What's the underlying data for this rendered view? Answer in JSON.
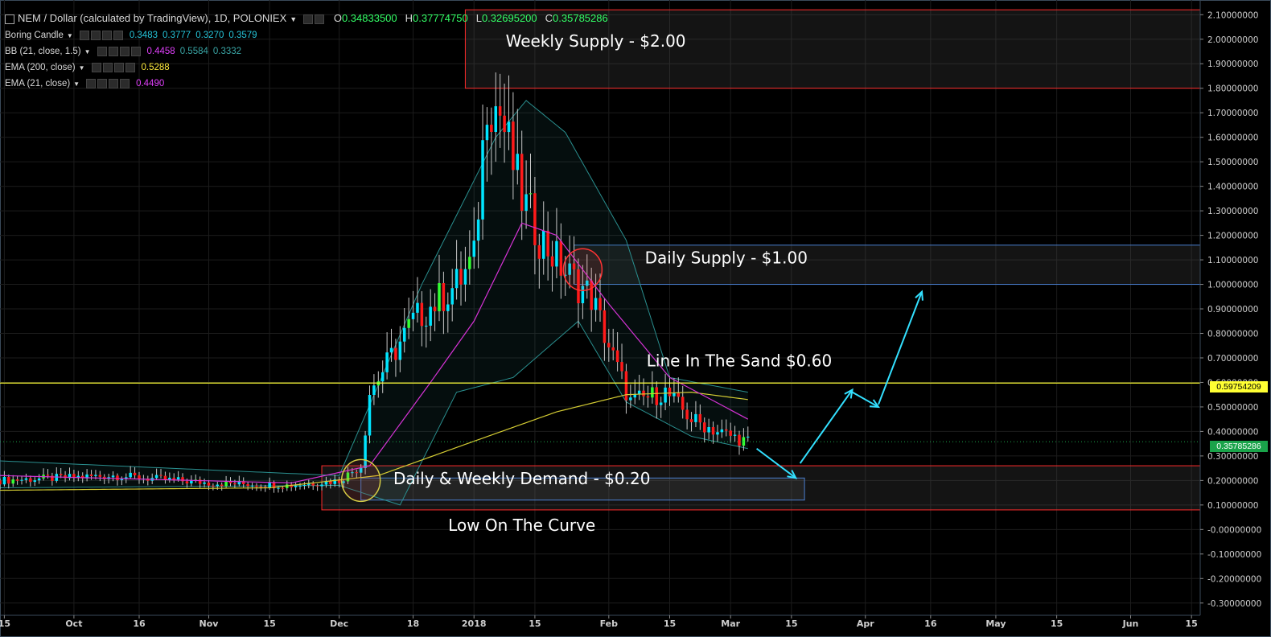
{
  "header": {
    "title": "NEM / Dollar (calculated by TradingView), 1D, POLONIEX",
    "ohlc": [
      {
        "k": "O",
        "v": "0.34833500"
      },
      {
        "k": "H",
        "v": "0.37774750"
      },
      {
        "k": "L",
        "v": "0.32695200"
      },
      {
        "k": "C",
        "v": "0.35785286"
      }
    ]
  },
  "indicators": [
    {
      "name": "Boring Candle",
      "values": [
        "0.3483",
        "0.3777",
        "0.3270",
        "0.3579"
      ],
      "colors": [
        "#26c6da",
        "#26c6da",
        "#26c6da",
        "#26c6da"
      ]
    },
    {
      "name": "BB (21, close, 1.5)",
      "values": [
        "0.4458",
        "0.5584",
        "0.3332"
      ],
      "colors": [
        "#e040fb",
        "#3aa6a6",
        "#3aa6a6"
      ]
    },
    {
      "name": "EMA (200, close)",
      "values": [
        "0.5288"
      ],
      "colors": [
        "#ffeb3b"
      ]
    },
    {
      "name": "EMA (21, close)",
      "values": [
        "0.4490"
      ],
      "colors": [
        "#e040fb"
      ]
    }
  ],
  "colors": {
    "up": "#00e5ff",
    "down": "#ff1a1a",
    "up_alt": "#33ff33",
    "ema200": "#d4cc33",
    "ema21": "#d633d6",
    "bb": "#2a8f8f",
    "sand_line": "#ffff33",
    "supply_border": "#ff2b2b",
    "daily_border": "#4a7fd0",
    "arrow": "#33e0ff",
    "circle_red": "#ff3333",
    "circle_yellow": "#d6cc44"
  },
  "annotations": {
    "weekly_supply": "Weekly Supply - $2.00",
    "daily_supply": "Daily Supply - $1.00",
    "line_in_sand": "Line In The Sand $0.60",
    "demand": "Daily & Weekly Demand - $0.20",
    "low_curve": "Low On The Curve"
  },
  "price_tags": {
    "sand": "0.59754209",
    "last": "0.35785286"
  },
  "chart_data": {
    "type": "candlestick",
    "y_ticks": [
      2.1,
      2.0,
      1.9,
      1.8,
      1.7,
      1.6,
      1.5,
      1.4,
      1.3,
      1.2,
      1.1,
      1.0,
      0.9,
      0.8,
      0.7,
      0.6,
      0.5,
      0.4,
      0.3,
      0.2,
      0.1,
      0.0,
      -0.1,
      -0.2,
      -0.3
    ],
    "y_tick_labels": [
      "2.10000000",
      "2.00000000",
      "1.90000000",
      "1.80000000",
      "1.70000000",
      "1.60000000",
      "1.50000000",
      "1.40000000",
      "1.30000000",
      "1.20000000",
      "1.10000000",
      "1.00000000",
      "0.90000000",
      "0.80000000",
      "0.70000000",
      "0.60000000",
      "0.50000000",
      "0.40000000",
      "0.30000000",
      "0.20000000",
      "0.10000000",
      "-0.00000000",
      "-0.10000000",
      "-0.20000000",
      "-0.30000000"
    ],
    "ylim": [
      -0.35,
      2.16
    ],
    "x_ticks": [
      {
        "label": "15",
        "date": "2017-09-15"
      },
      {
        "label": "Oct",
        "date": "2017-10-01"
      },
      {
        "label": "16",
        "date": "2017-10-16"
      },
      {
        "label": "Nov",
        "date": "2017-11-01"
      },
      {
        "label": "15",
        "date": "2017-11-15"
      },
      {
        "label": "Dec",
        "date": "2017-12-01"
      },
      {
        "label": "18",
        "date": "2017-12-18"
      },
      {
        "label": "2018",
        "date": "2018-01-01"
      },
      {
        "label": "15",
        "date": "2018-01-15"
      },
      {
        "label": "Feb",
        "date": "2018-02-01"
      },
      {
        "label": "15",
        "date": "2018-02-15"
      },
      {
        "label": "Mar",
        "date": "2018-03-01"
      },
      {
        "label": "15",
        "date": "2018-03-15"
      },
      {
        "label": "Apr",
        "date": "2018-04-01"
      },
      {
        "label": "16",
        "date": "2018-04-16"
      },
      {
        "label": "May",
        "date": "2018-05-01"
      },
      {
        "label": "15",
        "date": "2018-05-15"
      },
      {
        "label": "Jun",
        "date": "2018-06-01"
      },
      {
        "label": "15",
        "date": "2018-06-15"
      }
    ],
    "xlim": [
      "2017-09-14",
      "2018-06-17"
    ],
    "zones": [
      {
        "name": "weekly-supply",
        "from_date": "2017-12-30",
        "to_date": "2018-06-17",
        "low": 1.8,
        "high": 2.12,
        "border": "supply_border"
      },
      {
        "name": "daily-supply",
        "from_date": "2018-01-24",
        "to_date": "2018-06-17",
        "low": 1.0,
        "high": 1.16,
        "border": "daily_border"
      },
      {
        "name": "demand-outer",
        "from_date": "2017-11-27",
        "to_date": "2018-06-17",
        "low": 0.08,
        "high": 0.26,
        "border": "supply_border"
      },
      {
        "name": "demand-inner",
        "from_date": "2017-12-06",
        "to_date": "2018-03-18",
        "low": 0.12,
        "high": 0.21,
        "border": "daily_border"
      }
    ],
    "horizontal_lines": [
      {
        "name": "line-in-the-sand",
        "y": 0.5975,
        "color": "sand_line"
      }
    ],
    "projection_arrows": [
      {
        "from": [
          "2018-03-07",
          0.33
        ],
        "to": [
          "2018-03-16",
          0.21
        ]
      },
      {
        "from": [
          "2018-03-17",
          0.27
        ],
        "to": [
          "2018-03-29",
          0.57
        ]
      },
      {
        "from": [
          "2018-03-29",
          0.56
        ],
        "to": [
          "2018-04-04",
          0.5
        ]
      },
      {
        "from": [
          "2018-04-04",
          0.51
        ],
        "to": [
          "2018-04-14",
          0.97
        ]
      }
    ],
    "circles": [
      {
        "date": "2018-01-26",
        "y": 1.06,
        "color": "circle_red"
      },
      {
        "date": "2017-12-06",
        "y": 0.2,
        "color": "circle_yellow"
      }
    ],
    "anchors": [
      {
        "date": "2017-09-14",
        "c": 0.2
      },
      {
        "date": "2017-10-10",
        "c": 0.22
      },
      {
        "date": "2017-11-01",
        "c": 0.19
      },
      {
        "date": "2017-11-20",
        "c": 0.18
      },
      {
        "date": "2017-12-01",
        "c": 0.2
      },
      {
        "date": "2017-12-06",
        "c": 0.26
      },
      {
        "date": "2017-12-08",
        "c": 0.56
      },
      {
        "date": "2017-12-18",
        "c": 0.85
      },
      {
        "date": "2017-12-28",
        "c": 1.0
      },
      {
        "date": "2018-01-01",
        "c": 1.1
      },
      {
        "date": "2018-01-04",
        "c": 1.78
      },
      {
        "date": "2018-01-07",
        "c": 1.7
      },
      {
        "date": "2018-01-12",
        "c": 1.35
      },
      {
        "date": "2018-01-16",
        "c": 1.2
      },
      {
        "date": "2018-01-22",
        "c": 1.05
      },
      {
        "date": "2018-01-28",
        "c": 0.95
      },
      {
        "date": "2018-02-02",
        "c": 0.7
      },
      {
        "date": "2018-02-06",
        "c": 0.52
      },
      {
        "date": "2018-02-14",
        "c": 0.56
      },
      {
        "date": "2018-02-20",
        "c": 0.45
      },
      {
        "date": "2018-02-26",
        "c": 0.4
      },
      {
        "date": "2018-03-05",
        "c": 0.358
      }
    ],
    "ema200": [
      [
        "2017-09-14",
        0.16
      ],
      [
        "2017-11-15",
        0.17
      ],
      [
        "2017-12-10",
        0.22
      ],
      [
        "2018-01-01",
        0.36
      ],
      [
        "2018-01-20",
        0.48
      ],
      [
        "2018-02-05",
        0.55
      ],
      [
        "2018-02-20",
        0.56
      ],
      [
        "2018-03-05",
        0.53
      ]
    ],
    "ema21": [
      [
        "2017-09-14",
        0.22
      ],
      [
        "2017-11-20",
        0.19
      ],
      [
        "2017-12-08",
        0.26
      ],
      [
        "2017-12-22",
        0.6
      ],
      [
        "2018-01-01",
        0.85
      ],
      [
        "2018-01-12",
        1.25
      ],
      [
        "2018-01-20",
        1.2
      ],
      [
        "2018-02-01",
        0.92
      ],
      [
        "2018-02-15",
        0.62
      ],
      [
        "2018-03-05",
        0.45
      ]
    ],
    "bb_upper": [
      [
        "2017-09-14",
        0.28
      ],
      [
        "2017-12-01",
        0.22
      ],
      [
        "2017-12-20",
        1.0
      ],
      [
        "2018-01-06",
        1.6
      ],
      [
        "2018-01-13",
        1.75
      ],
      [
        "2018-01-22",
        1.62
      ],
      [
        "2018-02-05",
        1.18
      ],
      [
        "2018-02-15",
        0.62
      ],
      [
        "2018-03-05",
        0.56
      ]
    ],
    "bb_lower": [
      [
        "2017-09-14",
        0.17
      ],
      [
        "2017-12-01",
        0.18
      ],
      [
        "2017-12-15",
        0.1
      ],
      [
        "2017-12-28",
        0.56
      ],
      [
        "2018-01-10",
        0.62
      ],
      [
        "2018-01-25",
        0.85
      ],
      [
        "2018-02-05",
        0.52
      ],
      [
        "2018-02-20",
        0.38
      ],
      [
        "2018-03-05",
        0.33
      ]
    ]
  }
}
